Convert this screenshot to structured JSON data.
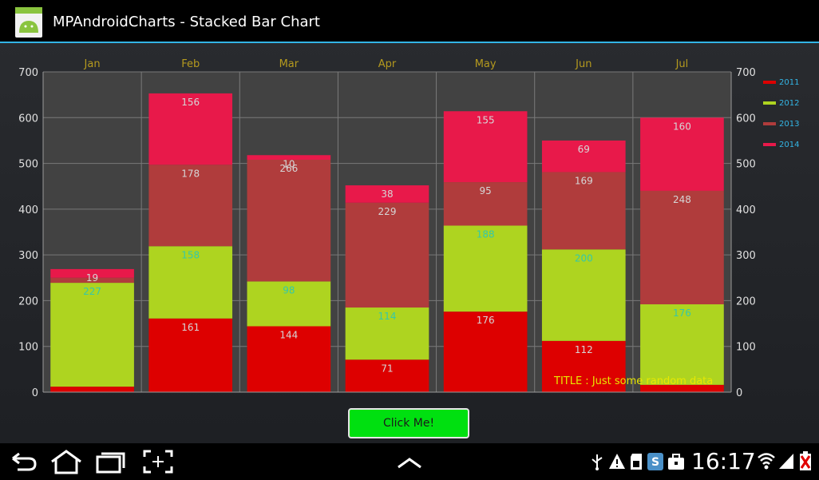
{
  "app": {
    "title": "MPAndroidCharts - Stacked Bar Chart",
    "icon": "android-app-icon"
  },
  "button": {
    "label": "Click Me!"
  },
  "status_bar": {
    "time": "16:17",
    "icons": [
      "usb-icon",
      "warning-icon",
      "sd-card-icon",
      "sync-app-icon",
      "briefcase-icon",
      "wifi-icon",
      "signal-icon",
      "battery-low-icon"
    ]
  },
  "nav": {
    "buttons": [
      "back-icon",
      "home-icon",
      "recents-icon",
      "screenshot-icon",
      "up-chevron-icon"
    ]
  },
  "chart_data": {
    "type": "bar",
    "stacked": true,
    "categories": [
      "Jan",
      "Feb",
      "Mar",
      "Apr",
      "May",
      "Jun",
      "Jul"
    ],
    "series": [
      {
        "name": "2011",
        "color": "#dd0000",
        "values": [
          12,
          161,
          144,
          71,
          176,
          112,
          16
        ],
        "labels": [
          "",
          "161",
          "144",
          "71",
          "176",
          "112",
          ""
        ]
      },
      {
        "name": "2012",
        "color": "#aed420",
        "values": [
          227,
          158,
          98,
          114,
          188,
          200,
          176
        ],
        "labels": [
          "227",
          "158",
          "98",
          "114",
          "188",
          "200",
          "176"
        ]
      },
      {
        "name": "2013",
        "color": "#b03c3c",
        "values": [
          11,
          178,
          266,
          229,
          95,
          169,
          248
        ],
        "labels": [
          "",
          "178",
          "266",
          "229",
          "95",
          "169",
          "248"
        ]
      },
      {
        "name": "2014",
        "color": "#e8194a",
        "values": [
          19,
          156,
          10,
          38,
          155,
          69,
          160
        ],
        "labels": [
          "19",
          "156",
          "10",
          "38",
          "155",
          "69",
          "160"
        ]
      }
    ],
    "ylim": [
      0,
      700
    ],
    "yticks": [
      "0",
      "100",
      "200",
      "300",
      "400",
      "500",
      "600",
      "700"
    ],
    "grid": true,
    "legend_position": "right",
    "annotation": "TITLE : Just some random data",
    "colors": {
      "plot_background": "#424242",
      "grid": "#7a7a7a",
      "month_label": "#b59a1e",
      "axis_label": "#e0e0e0",
      "value_label": "#d6d6d6",
      "value_label_alt": "#35c8a8",
      "legend_text": "#33b5e5",
      "annotation": "#e8e800"
    }
  }
}
